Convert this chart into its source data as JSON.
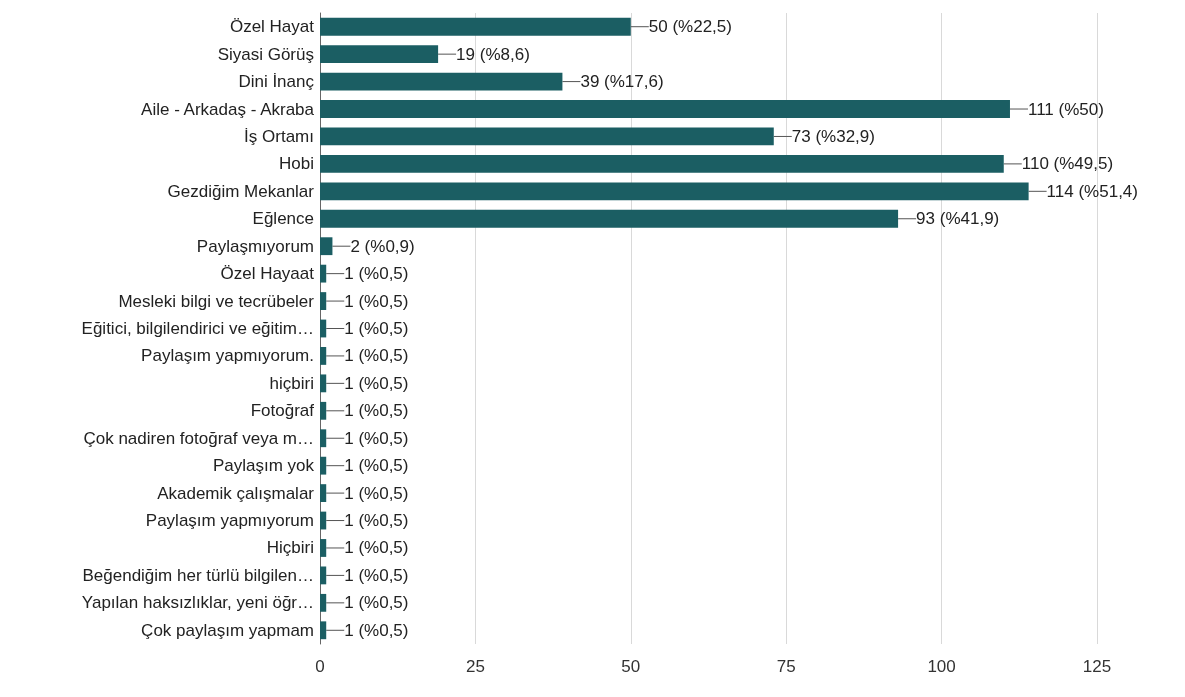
{
  "chart_data": {
    "type": "bar",
    "orientation": "horizontal",
    "categories": [
      "Özel Hayat",
      "Siyasi Görüş",
      "Dini İnanç",
      "Aile - Arkadaş - Akraba",
      "İş Ortamı",
      "Hobi",
      "Gezdiğim Mekanlar",
      "Eğlence",
      "Paylaşmıyorum",
      "Özel Hayaat",
      "Mesleki bilgi ve tecrübeler",
      "Eğitici, bilgilendirici ve eğitim…",
      "Paylaşım yapmıyorum.",
      "hiçbiri",
      "Fotoğraf",
      "Çok nadiren fotoğraf veya m…",
      "Paylaşım yok",
      "Akademik çalışmalar",
      "Paylaşım yapmıyorum",
      "Hiçbiri",
      "Beğendiğim her türlü bilgilen…",
      "Yapılan haksızlıklar, yeni öğr…",
      "Çok paylaşım yapmam"
    ],
    "values": [
      50,
      19,
      39,
      111,
      73,
      110,
      114,
      93,
      2,
      1,
      1,
      1,
      1,
      1,
      1,
      1,
      1,
      1,
      1,
      1,
      1,
      1,
      1
    ],
    "value_labels": [
      "50 (%22,5)",
      "19 (%8,6)",
      "39 (%17,6)",
      "111 (%50)",
      "73 (%32,9)",
      "110 (%49,5)",
      "114 (%51,4)",
      "93 (%41,9)",
      "2 (%0,9)",
      "1 (%0,5)",
      "1 (%0,5)",
      "1 (%0,5)",
      "1 (%0,5)",
      "1 (%0,5)",
      "1 (%0,5)",
      "1 (%0,5)",
      "1 (%0,5)",
      "1 (%0,5)",
      "1 (%0,5)",
      "1 (%0,5)",
      "1 (%0,5)",
      "1 (%0,5)",
      "1 (%0,5)"
    ],
    "color": "#1b5e63",
    "xlim": [
      0,
      125
    ],
    "xticks": [
      0,
      25,
      50,
      75,
      100,
      125
    ],
    "grid": "x"
  }
}
